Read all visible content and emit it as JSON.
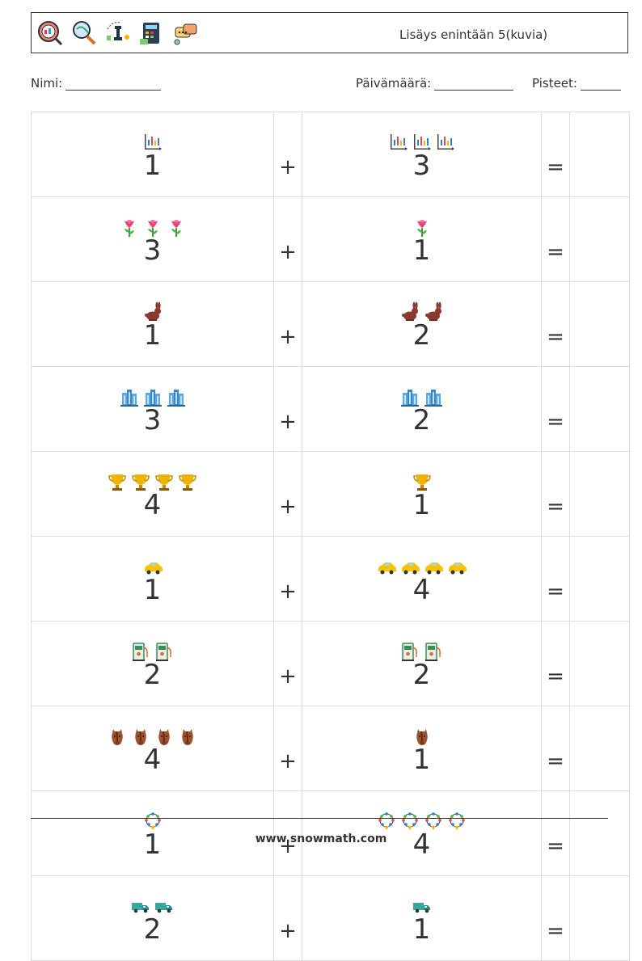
{
  "header": {
    "title": "Lisäys enintään 5(kuvia)",
    "icons": [
      "stats-magnifier-icon",
      "search-globe-icon",
      "chess-strategy-icon",
      "calculator-icon",
      "chat-bubbles-icon"
    ]
  },
  "info": {
    "name_label": "Nimi:",
    "date_label": "Päivämäärä:",
    "score_label": "Pisteet:"
  },
  "problems": [
    {
      "a": 1,
      "a_icon": "chart-icon",
      "op": "+",
      "b": 3,
      "b_icon": "chart-icon",
      "eq": "="
    },
    {
      "a": 3,
      "a_icon": "flower-icon",
      "op": "+",
      "b": 1,
      "b_icon": "flower-icon",
      "eq": "="
    },
    {
      "a": 1,
      "a_icon": "rabbit-icon",
      "op": "+",
      "b": 2,
      "b_icon": "rabbit-icon",
      "eq": "="
    },
    {
      "a": 3,
      "a_icon": "building-icon",
      "op": "+",
      "b": 2,
      "b_icon": "building-icon",
      "eq": "="
    },
    {
      "a": 4,
      "a_icon": "trophy-icon",
      "op": "+",
      "b": 1,
      "b_icon": "trophy-icon",
      "eq": "="
    },
    {
      "a": 1,
      "a_icon": "car-icon",
      "op": "+",
      "b": 4,
      "b_icon": "car-icon",
      "eq": "="
    },
    {
      "a": 2,
      "a_icon": "fuel-pump-icon",
      "op": "+",
      "b": 2,
      "b_icon": "fuel-pump-icon",
      "eq": "="
    },
    {
      "a": 4,
      "a_icon": "horse-icon",
      "op": "+",
      "b": 1,
      "b_icon": "horse-icon",
      "eq": "="
    },
    {
      "a": 1,
      "a_icon": "necklace-icon",
      "op": "+",
      "b": 4,
      "b_icon": "necklace-icon",
      "eq": "="
    },
    {
      "a": 2,
      "a_icon": "truck-icon",
      "op": "+",
      "b": 1,
      "b_icon": "truck-icon",
      "eq": "="
    }
  ],
  "footer": {
    "website": "www.snowmath.com"
  }
}
